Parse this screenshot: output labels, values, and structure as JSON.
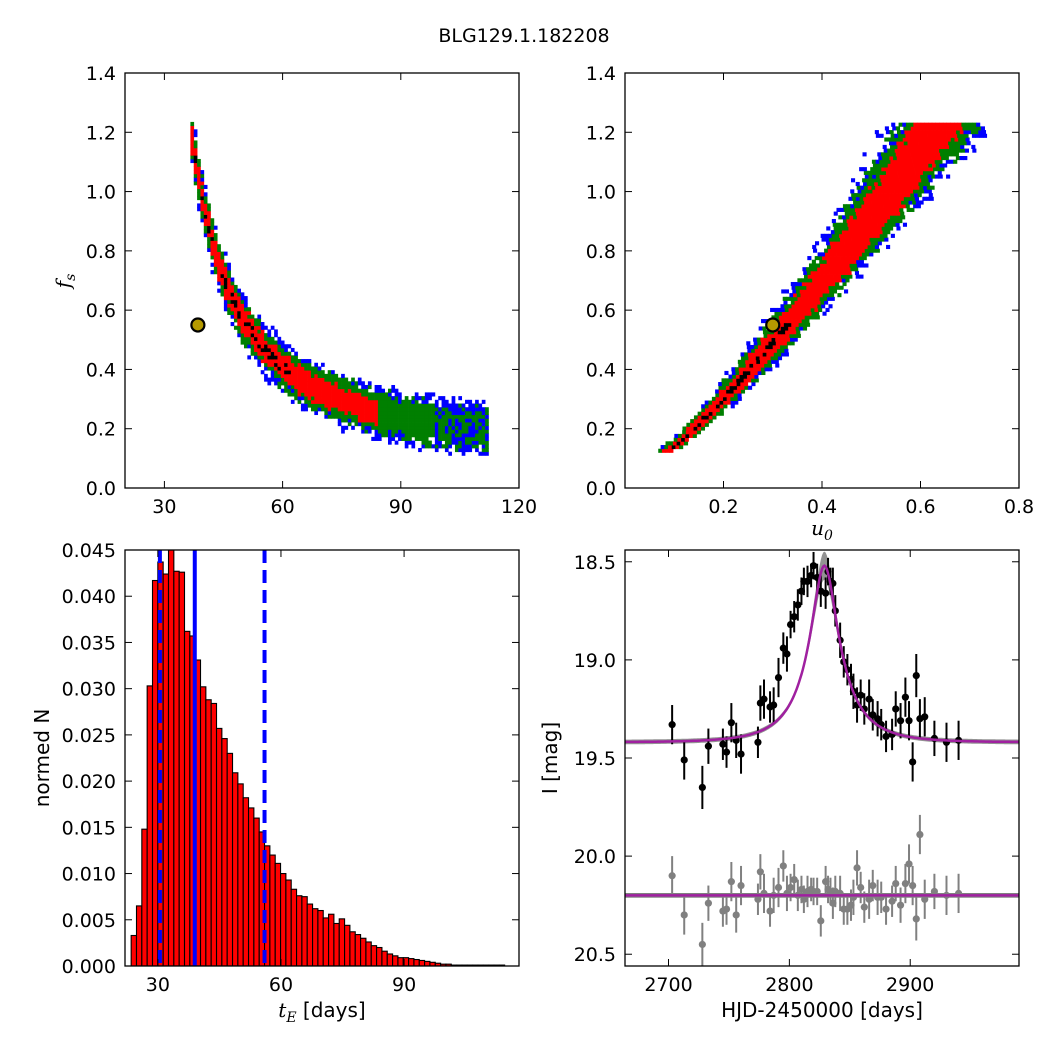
{
  "figure": {
    "title": "BLG129.1.182208"
  },
  "chart_data": [
    {
      "type": "heatmap",
      "id": "panel_fs_vs_tE",
      "xlabel": "",
      "ylabel": "f_s",
      "xlim": [
        20,
        120
      ],
      "ylim": [
        0.0,
        1.4
      ],
      "xticks": [
        30,
        60,
        90,
        120
      ],
      "yticks": [
        0.0,
        0.2,
        0.4,
        0.6,
        0.8,
        1.0,
        1.2,
        1.4
      ],
      "yticklabels": [
        "0.0",
        "0.2",
        "0.4",
        "0.6",
        "0.8",
        "1.0",
        "1.2",
        "1.4"
      ],
      "confidence_colors": {
        "outer": "#0000ff",
        "middle": "#007f00",
        "inner": "#ff0000",
        "best": "#000000"
      },
      "best_fit": {
        "x": 38.5,
        "y": 0.55
      },
      "band_relation": "f_s ≈ 0.10 + 0.455·(30/(tE−20))^1.45 (approx. from image)"
    },
    {
      "type": "heatmap",
      "id": "panel_fs_vs_u0",
      "xlabel": "u_0",
      "ylabel": "",
      "xlim": [
        0.0,
        0.8
      ],
      "ylim": [
        0.0,
        1.4
      ],
      "xticks": [
        0.2,
        0.4,
        0.6,
        0.8
      ],
      "xticklabels": [
        "0.2",
        "0.4",
        "0.6",
        "0.8"
      ],
      "yticks": [
        0.0,
        0.2,
        0.4,
        0.6,
        0.8,
        1.0,
        1.2,
        1.4
      ],
      "yticklabels": [
        "0.0",
        "0.2",
        "0.4",
        "0.6",
        "0.8",
        "1.0",
        "1.2",
        "1.4"
      ],
      "confidence_colors": {
        "outer": "#0000ff",
        "middle": "#007f00",
        "inner": "#ff0000",
        "best": "#000000"
      },
      "best_fit": {
        "x": 0.3,
        "y": 0.55
      }
    },
    {
      "type": "bar",
      "id": "panel_tE_histogram",
      "xlabel": "t_E [days]",
      "ylabel": "normed N",
      "xlim": [
        22,
        118
      ],
      "ylim": [
        0.0,
        0.045
      ],
      "xticks": [
        30,
        60,
        90
      ],
      "yticks": [
        0.0,
        0.005,
        0.01,
        0.015,
        0.02,
        0.025,
        0.03,
        0.035,
        0.04,
        0.045
      ],
      "yticklabels": [
        "0.000",
        "0.005",
        "0.010",
        "0.015",
        "0.020",
        "0.025",
        "0.030",
        "0.035",
        "0.040",
        "0.045"
      ],
      "bin_start": 23.5,
      "bin_width": 1.3,
      "values": [
        0.0033,
        0.0065,
        0.0148,
        0.0303,
        0.0417,
        0.0437,
        0.0424,
        0.045,
        0.0427,
        0.0426,
        0.0362,
        0.0357,
        0.0331,
        0.0302,
        0.0288,
        0.0284,
        0.0257,
        0.0246,
        0.023,
        0.0209,
        0.0197,
        0.0182,
        0.0171,
        0.016,
        0.0145,
        0.013,
        0.012,
        0.0111,
        0.01,
        0.0093,
        0.0083,
        0.0076,
        0.0075,
        0.0067,
        0.0062,
        0.006,
        0.0052,
        0.0056,
        0.0046,
        0.0051,
        0.0044,
        0.0037,
        0.0034,
        0.003,
        0.0026,
        0.0022,
        0.002,
        0.0016,
        0.0013,
        0.0011,
        0.0009,
        0.0009,
        0.0008,
        0.0007,
        0.0006,
        0.0005,
        0.0004,
        0.0003,
        0.0002,
        0.0002,
        0.0001,
        0.0001,
        0.0001,
        0.0001,
        0.0001,
        0.0001,
        0.0001,
        0.0001,
        0.0001,
        0.0001
      ],
      "bar_color": "#ff0000",
      "vlines": [
        {
          "x": 39.0,
          "style": "solid",
          "color": "#0000ff"
        },
        {
          "x": 30.5,
          "style": "dashed",
          "color": "#0000ff"
        },
        {
          "x": 56.0,
          "style": "dashed",
          "color": "#0000ff"
        }
      ]
    },
    {
      "type": "scatter",
      "id": "panel_lightcurve",
      "xlabel": "HJD-2450000 [days]",
      "ylabel": "I [mag]",
      "xlim": [
        2664,
        2990
      ],
      "ylim": [
        20.56,
        18.44
      ],
      "y_inverted": true,
      "xticks": [
        2700,
        2800,
        2900
      ],
      "yticks": [
        18.5,
        19.0,
        19.5,
        20.0,
        20.5
      ],
      "yticklabels": [
        "18.5",
        "19.0",
        "19.5",
        "20.0",
        "20.5"
      ],
      "model": {
        "baseline": 19.42,
        "peak": 18.52,
        "t0": 2829,
        "tE": 38.5,
        "u0": 0.3,
        "color": "#a020a0"
      },
      "residual_offset": 20.2,
      "series": [
        {
          "color": "#000000",
          "t": [
            2703,
            2713,
            2728,
            2733,
            2745,
            2748,
            2752,
            2756,
            2760,
            2774,
            2776,
            2779,
            2784,
            2787,
            2791,
            2795,
            2798,
            2801,
            2804,
            2807,
            2810,
            2812,
            2815,
            2818,
            2820,
            2823,
            2826,
            2830,
            2832,
            2834,
            2836,
            2838,
            2842,
            2845,
            2848,
            2851,
            2853,
            2856,
            2859,
            2862,
            2866,
            2869,
            2873,
            2876,
            2880,
            2885,
            2888,
            2892,
            2896,
            2899,
            2902,
            2905,
            2908,
            2912,
            2920,
            2930,
            2940
          ],
          "mag": [
            19.33,
            19.51,
            19.65,
            19.44,
            19.43,
            19.47,
            19.32,
            19.41,
            19.48,
            19.42,
            19.22,
            19.2,
            19.24,
            19.23,
            19.09,
            18.94,
            18.97,
            18.82,
            18.78,
            18.72,
            18.65,
            18.6,
            18.6,
            18.57,
            18.52,
            18.58,
            18.65,
            18.66,
            18.55,
            18.6,
            18.61,
            18.75,
            18.9,
            19.01,
            19.05,
            19.1,
            19.16,
            19.23,
            19.18,
            19.25,
            19.2,
            19.28,
            19.3,
            19.33,
            19.39,
            19.38,
            19.25,
            19.31,
            19.19,
            19.31,
            19.52,
            19.08,
            19.3,
            19.29,
            19.4,
            19.42,
            19.41
          ],
          "err": [
            0.1,
            0.1,
            0.11,
            0.09,
            0.08,
            0.08,
            0.1,
            0.09,
            0.1,
            0.08,
            0.09,
            0.1,
            0.08,
            0.09,
            0.1,
            0.08,
            0.09,
            0.07,
            0.08,
            0.08,
            0.07,
            0.07,
            0.08,
            0.06,
            0.07,
            0.07,
            0.08,
            0.08,
            0.07,
            0.07,
            0.08,
            0.08,
            0.09,
            0.08,
            0.08,
            0.08,
            0.09,
            0.09,
            0.08,
            0.08,
            0.1,
            0.08,
            0.09,
            0.08,
            0.08,
            0.08,
            0.09,
            0.09,
            0.1,
            0.1,
            0.1,
            0.11,
            0.1,
            0.1,
            0.09,
            0.1,
            0.1
          ]
        },
        {
          "color": "#808080",
          "t": [
            2703,
            2713,
            2728,
            2733,
            2745,
            2748,
            2752,
            2756,
            2760,
            2774,
            2776,
            2779,
            2784,
            2787,
            2791,
            2795,
            2798,
            2801,
            2804,
            2807,
            2810,
            2812,
            2815,
            2818,
            2820,
            2823,
            2826,
            2830,
            2832,
            2834,
            2836,
            2838,
            2842,
            2845,
            2848,
            2851,
            2853,
            2856,
            2859,
            2862,
            2866,
            2869,
            2873,
            2876,
            2880,
            2885,
            2888,
            2892,
            2896,
            2899,
            2902,
            2905,
            2908,
            2912,
            2920,
            2930,
            2940
          ],
          "mag": [
            20.1,
            20.3,
            20.45,
            20.24,
            20.28,
            20.27,
            20.13,
            20.3,
            20.15,
            20.22,
            20.08,
            20.19,
            20.28,
            20.2,
            20.16,
            20.05,
            20.19,
            20.16,
            20.12,
            20.2,
            20.17,
            20.22,
            20.18,
            20.17,
            20.18,
            20.18,
            20.33,
            20.13,
            20.17,
            20.18,
            20.24,
            20.18,
            20.19,
            20.27,
            20.27,
            20.25,
            20.21,
            20.06,
            20.16,
            20.26,
            20.22,
            20.15,
            20.21,
            20.21,
            20.27,
            20.23,
            20.14,
            20.25,
            20.14,
            20.04,
            20.15,
            20.32,
            19.89,
            20.22,
            20.18,
            20.2,
            20.19
          ],
          "err": [
            0.1,
            0.1,
            0.11,
            0.09,
            0.08,
            0.08,
            0.1,
            0.09,
            0.1,
            0.08,
            0.09,
            0.1,
            0.08,
            0.09,
            0.1,
            0.08,
            0.09,
            0.07,
            0.08,
            0.08,
            0.07,
            0.07,
            0.08,
            0.06,
            0.07,
            0.07,
            0.08,
            0.08,
            0.07,
            0.07,
            0.08,
            0.08,
            0.09,
            0.08,
            0.08,
            0.08,
            0.09,
            0.09,
            0.08,
            0.08,
            0.1,
            0.08,
            0.09,
            0.08,
            0.08,
            0.08,
            0.09,
            0.09,
            0.1,
            0.1,
            0.1,
            0.11,
            0.1,
            0.1,
            0.09,
            0.1,
            0.1
          ]
        }
      ]
    }
  ]
}
